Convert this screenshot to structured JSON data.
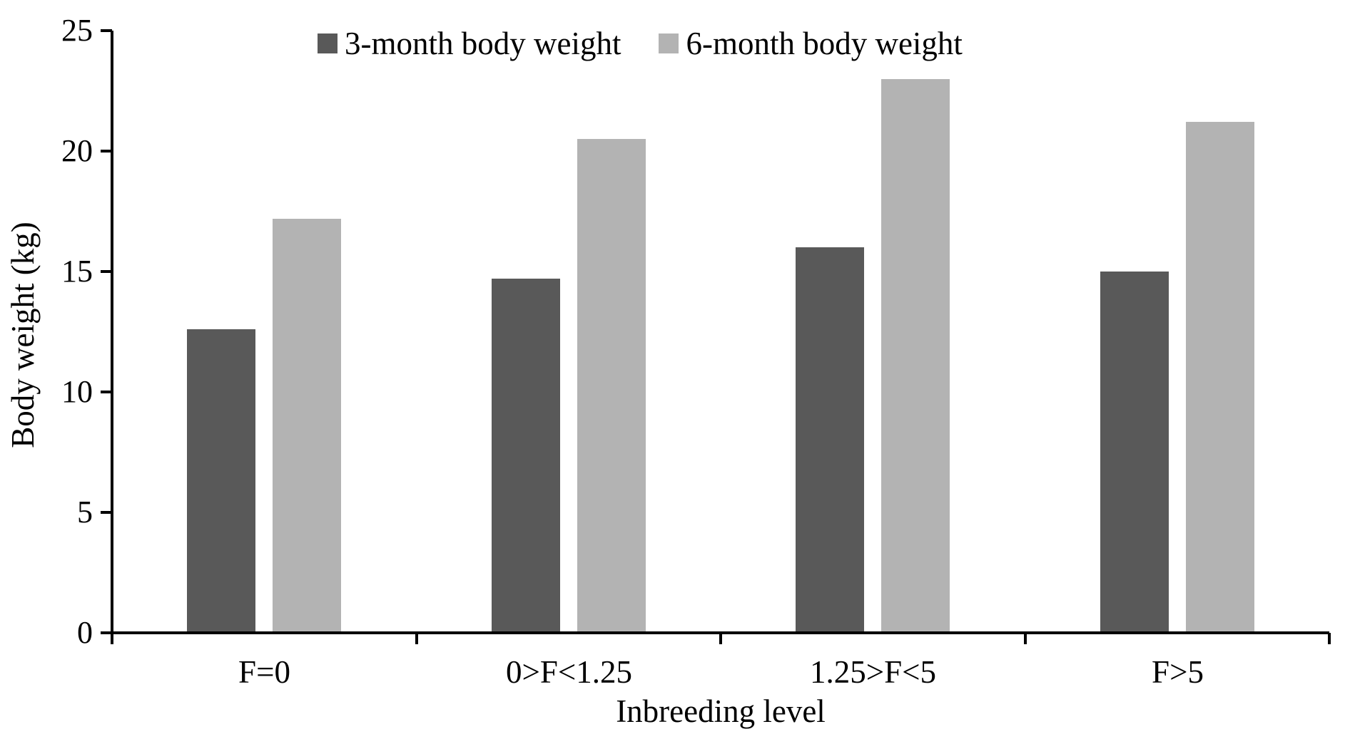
{
  "chart_data": {
    "type": "bar",
    "title": "",
    "categories": [
      "F=0",
      "0>F<1.25",
      "1.25>F<5",
      "F>5"
    ],
    "series": [
      {
        "name": "3-month body weight",
        "color": "#595959",
        "values": [
          12.6,
          14.7,
          16.0,
          15.0
        ]
      },
      {
        "name": "6-month body weight",
        "color": "#b3b3b3",
        "values": [
          17.2,
          20.5,
          23.0,
          21.2
        ]
      }
    ],
    "xlabel": "Inbreeding level",
    "ylabel": "Body weight (kg)",
    "ylim": [
      0,
      25
    ],
    "ytick_step": 5,
    "ytick_labels": [
      "0",
      "5",
      "10",
      "15",
      "20",
      "25"
    ],
    "legend_position": "top-center",
    "grid": false,
    "background": "#ffffff",
    "axis_color": "#000000"
  }
}
